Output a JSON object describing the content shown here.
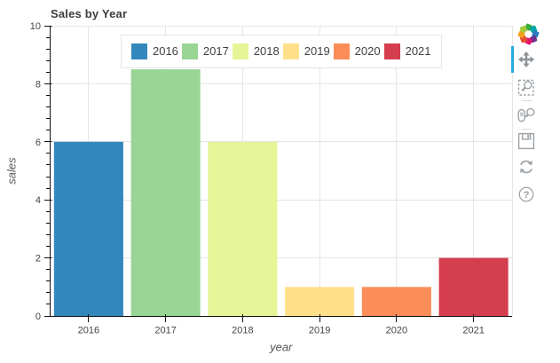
{
  "figure": {
    "title": "Sales by Year",
    "toolbar": {
      "logo": "bokeh-logo",
      "tools": [
        {
          "name": "pan",
          "active": true
        },
        {
          "name": "box-zoom",
          "active": false
        },
        {
          "name": "wheel-zoom",
          "active": false
        },
        {
          "name": "save",
          "active": false
        },
        {
          "name": "reset",
          "active": false
        },
        {
          "name": "help",
          "active": false
        }
      ],
      "help_glyph": "?"
    }
  },
  "chart_data": {
    "type": "bar",
    "title": "Sales by Year",
    "categories": [
      "2016",
      "2017",
      "2018",
      "2019",
      "2020",
      "2021"
    ],
    "values": [
      6,
      8.5,
      6,
      1,
      1,
      2
    ],
    "bar_colors": [
      "#3288bd",
      "#99d594",
      "#e6f598",
      "#fee08b",
      "#fc8d59",
      "#d53e4f"
    ],
    "xlabel": "year",
    "ylabel": "sales",
    "ylim": [
      0,
      10
    ],
    "yticks": [
      0,
      2,
      4,
      6,
      8,
      10
    ],
    "minor_tick_step": 0.4,
    "bar_width_fraction": 0.9,
    "grid": true,
    "legend": {
      "position": "top_center",
      "labels": [
        "2016",
        "2017",
        "2018",
        "2019",
        "2020",
        "2021"
      ]
    }
  },
  "colors": {
    "grid": "#e5e5e5",
    "outline": "#e5e5e5",
    "axis_line": "#111111",
    "tick": "#111111",
    "tick_label": "#444444",
    "axis_label": "#555555",
    "title": "#3b3b3b",
    "legend_border": "#e5e5e5",
    "toolbar_icon": "#9ba1a6",
    "toolbar_icon_pan": "#8d9399",
    "active_indicator": "#26aae1",
    "divider": "#d8d8d8",
    "logo_palette": [
      "#3aac3a",
      "#00a5a8",
      "#2f7abf",
      "#71308f",
      "#e4156d",
      "#e8512e",
      "#f7a01e",
      "#a3c93a"
    ]
  }
}
